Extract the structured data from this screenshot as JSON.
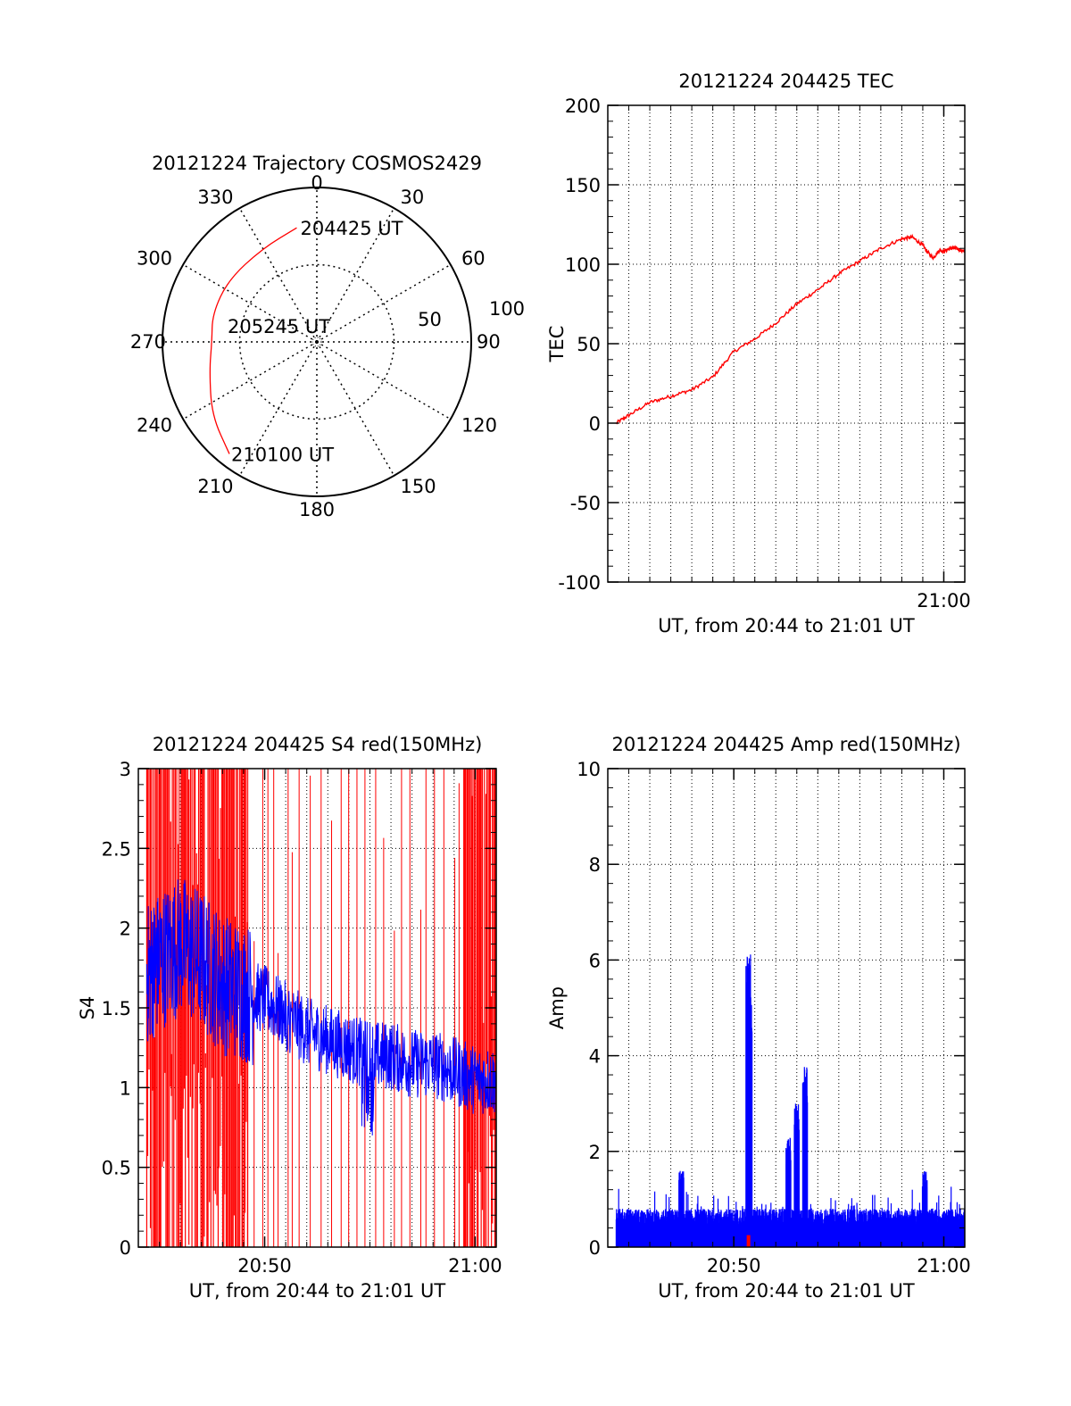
{
  "colors": {
    "red": "#ff0000",
    "blue": "#0000ff",
    "axis": "#000000",
    "grid": "#000000"
  },
  "polar": {
    "title": "20121224 Trajectory COSMOS2429",
    "azimuth_labels": [
      "0",
      "30",
      "60",
      "90",
      "120",
      "150",
      "180",
      "210",
      "240",
      "270",
      "300",
      "330"
    ],
    "radial_labels": [
      "50",
      "100"
    ],
    "point_labels": [
      "204425 UT",
      "205245 UT",
      "210100 UT"
    ]
  },
  "chart_data": [
    {
      "type": "polar_trajectory",
      "title": "20121224 Trajectory COSMOS2429",
      "azimuth_ticks": [
        0,
        30,
        60,
        90,
        120,
        150,
        180,
        210,
        240,
        270,
        300,
        330
      ],
      "radial_ticks": [
        50,
        100
      ],
      "zenith_range": [
        0,
        100
      ],
      "series": [
        {
          "color": "red",
          "points": [
            {
              "az": 350,
              "zd": 75,
              "label": "204425 UT"
            },
            {
              "az": 330,
              "zd": 70
            },
            {
              "az": 305,
              "zd": 70
            },
            {
              "az": 285,
              "zd": 70
            },
            {
              "az": 270,
              "zd": 68
            },
            {
              "az": 255,
              "zd": 72
            },
            {
              "az": 235,
              "zd": 83
            },
            {
              "az": 218,
              "zd": 92,
              "label": "210100 UT"
            }
          ]
        }
      ],
      "annotations": [
        {
          "text": "205245 UT",
          "az": 280,
          "zd": 20
        }
      ]
    },
    {
      "type": "line",
      "title": "20121224 204425 TEC",
      "xlabel": "UT, from 20:44 to 21:01 UT",
      "ylabel": "TEC",
      "xlim": [
        44.0,
        61.0
      ],
      "ylim": [
        -100,
        200
      ],
      "yticks": [
        -100,
        -50,
        0,
        50,
        100,
        150,
        200
      ],
      "xticks": [
        {
          "v": 60,
          "label": "21:00"
        }
      ],
      "grid": true,
      "series": [
        {
          "color": "red",
          "x": [
            44.4,
            45,
            46,
            47,
            48,
            49,
            50,
            51,
            52,
            53,
            54,
            55,
            56,
            57,
            58,
            58.5,
            59,
            59.2,
            59.5,
            59.8,
            60,
            60.3,
            60.6,
            61
          ],
          "y": [
            0,
            5,
            13,
            17,
            21,
            29,
            45,
            53,
            63,
            75,
            84,
            94,
            102,
            110,
            116,
            117,
            112,
            108,
            104,
            109,
            108,
            110,
            110,
            108
          ]
        }
      ]
    },
    {
      "type": "line",
      "title": "20121224 204425 S4 red(150MHz)",
      "xlabel": "UT, from 20:44 to 21:01 UT",
      "ylabel": "S4",
      "xlim": [
        44.0,
        61.0
      ],
      "ylim": [
        0,
        3
      ],
      "yticks": [
        0,
        0.5,
        1,
        1.5,
        2,
        2.5,
        3
      ],
      "ytick_labels": [
        "0",
        "0.5",
        "1",
        "1.5",
        "2",
        "2.5",
        "3"
      ],
      "xticks": [
        {
          "v": 50,
          "label": "20:50"
        },
        {
          "v": 60,
          "label": "21:00"
        }
      ],
      "grid": true,
      "series": [
        {
          "name": "",
          "color": "red",
          "style": "spikes",
          "dense_ranges": [
            [
              44.4,
              49.2
            ],
            [
              59.5,
              61
            ]
          ],
          "sparse_range": [
            49.2,
            59.5
          ]
        },
        {
          "name": "",
          "color": "blue",
          "style": "noisy",
          "x": [
            44.4,
            45,
            46,
            47,
            48,
            49,
            50,
            51,
            52,
            53,
            54,
            55,
            56,
            57,
            58,
            59,
            60,
            61
          ],
          "y": [
            1.7,
            1.8,
            1.9,
            1.8,
            1.65,
            1.6,
            1.55,
            1.45,
            1.35,
            1.3,
            1.25,
            1.2,
            1.2,
            1.15,
            1.15,
            1.1,
            1.05,
            1.05
          ]
        }
      ]
    },
    {
      "type": "line",
      "title": "20121224 204425 Amp red(150MHz)",
      "xlabel": "UT, from 20:44 to 21:01 UT",
      "ylabel": "Amp",
      "xlim": [
        44.0,
        61.0
      ],
      "ylim": [
        0,
        10
      ],
      "yticks": [
        0,
        2,
        4,
        6,
        8,
        10
      ],
      "xticks": [
        {
          "v": 50,
          "label": "20:50"
        },
        {
          "v": 60,
          "label": "21:00"
        }
      ],
      "grid": true,
      "series": [
        {
          "name": "",
          "color": "blue",
          "style": "fill-noise",
          "base": 0.45,
          "spikes": [
            {
              "x": 47.5,
              "y": 1.6
            },
            {
              "x": 50.7,
              "y": 6.2
            },
            {
              "x": 50.75,
              "y": 6.0
            },
            {
              "x": 52.6,
              "y": 2.3
            },
            {
              "x": 53.0,
              "y": 3.0
            },
            {
              "x": 53.4,
              "y": 3.8
            },
            {
              "x": 59.1,
              "y": 1.6
            }
          ]
        },
        {
          "name": "",
          "color": "red",
          "style": "marker",
          "x": 50.7,
          "y": 0.1
        }
      ]
    }
  ]
}
